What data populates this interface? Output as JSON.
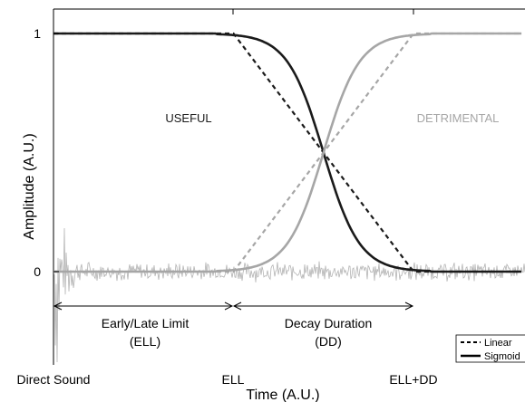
{
  "chart_data": {
    "type": "line",
    "xlabel": "Time (A.U.)",
    "ylabel": "Amplitude (A.U.)",
    "x_ticks": [
      "Direct Sound",
      "ELL",
      "ELL+DD"
    ],
    "y_ticks": [
      "0",
      "1"
    ],
    "xlim": [
      0,
      2.6
    ],
    "ylim": [
      -0.37,
      1.1
    ],
    "grid": false,
    "legend_position": "bottom-right",
    "legend": [
      {
        "label": "Linear",
        "style": "dashed"
      },
      {
        "label": "Sigmoid",
        "style": "solid"
      }
    ],
    "colors": {
      "useful": "#1a1a1a",
      "detrimental": "#a6a6a6",
      "signal": "#b3b3b3"
    },
    "region_labels": {
      "useful": "USEFUL",
      "detrimental": "DETRIMENTAL"
    },
    "annotations": {
      "ell_arrow": {
        "line1": "Early/Late Limit",
        "line2": "(ELL)"
      },
      "dd_arrow": {
        "line1": "Decay Duration",
        "line2": "(DD)"
      }
    },
    "series": [
      {
        "role": "useful",
        "style": "dashed",
        "color": "#1a1a1a",
        "x": [
          0,
          1,
          2,
          2.6
        ],
        "y": [
          1,
          1,
          0,
          0
        ]
      },
      {
        "role": "detrimental",
        "style": "dashed",
        "color": "#a6a6a6",
        "x": [
          0,
          1,
          2,
          2.6
        ],
        "y": [
          0,
          0,
          1,
          1
        ]
      },
      {
        "role": "useful",
        "style": "solid",
        "color": "#1a1a1a",
        "x": [
          0,
          1.0,
          1.1,
          1.2,
          1.3,
          1.4,
          1.5,
          1.6,
          1.7,
          1.8,
          1.9,
          2.0,
          2.6
        ],
        "y": [
          1,
          0.993,
          0.98,
          0.953,
          0.881,
          0.731,
          0.5,
          0.269,
          0.119,
          0.047,
          0.018,
          0.007,
          0
        ]
      },
      {
        "role": "detrimental",
        "style": "solid",
        "color": "#a6a6a6",
        "x": [
          0,
          1.0,
          1.1,
          1.2,
          1.3,
          1.4,
          1.5,
          1.6,
          1.7,
          1.8,
          1.9,
          2.0,
          2.6
        ],
        "y": [
          0,
          0.007,
          0.02,
          0.047,
          0.119,
          0.269,
          0.5,
          0.731,
          0.881,
          0.953,
          0.982,
          0.993,
          1
        ]
      }
    ]
  }
}
